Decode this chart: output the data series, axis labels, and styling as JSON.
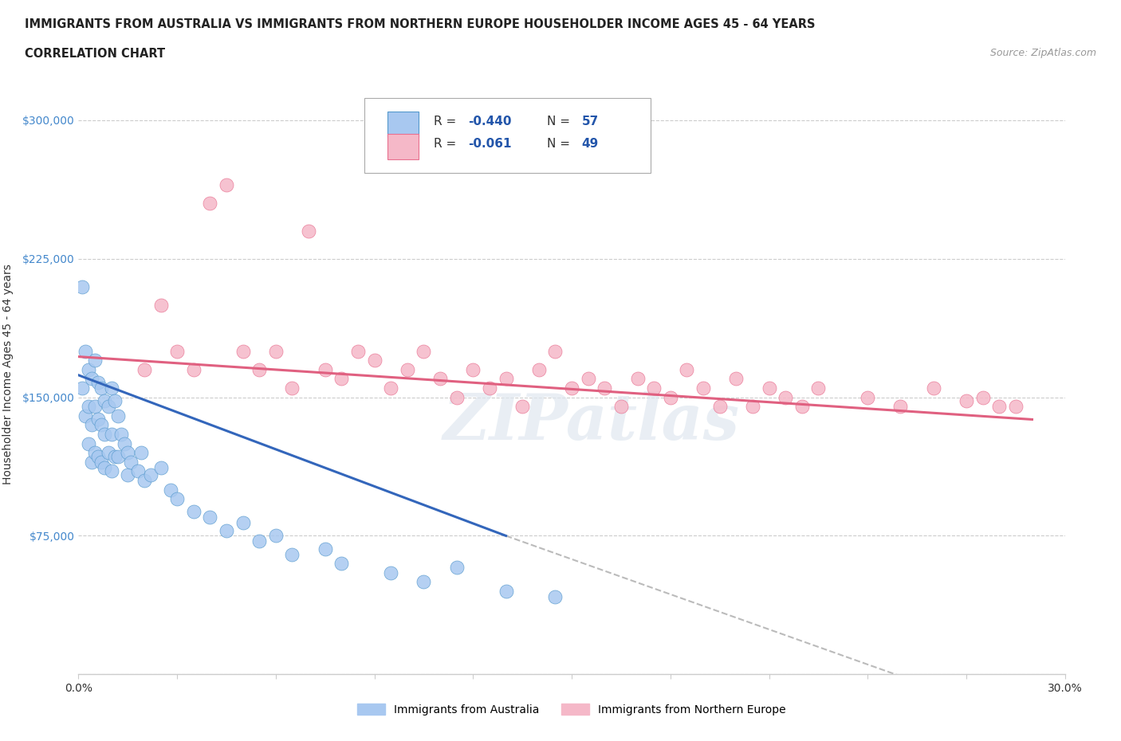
{
  "title_line1": "IMMIGRANTS FROM AUSTRALIA VS IMMIGRANTS FROM NORTHERN EUROPE HOUSEHOLDER INCOME AGES 45 - 64 YEARS",
  "title_line2": "CORRELATION CHART",
  "source_text": "Source: ZipAtlas.com",
  "ylabel": "Householder Income Ages 45 - 64 years",
  "xlim": [
    0.0,
    0.3
  ],
  "ylim": [
    0,
    325000
  ],
  "yticks": [
    0,
    75000,
    150000,
    225000,
    300000
  ],
  "yticklabels": [
    "",
    "$75,000",
    "$150,000",
    "$225,000",
    "$300,000"
  ],
  "grid_color": "#cccccc",
  "background_color": "#ffffff",
  "australia_color": "#a8c8f0",
  "northern_europe_color": "#f5b8c8",
  "australia_line_color": "#3366bb",
  "northern_europe_line_color": "#e06080",
  "dashed_line_color": "#bbbbbb",
  "australia_scatter_x": [
    0.001,
    0.001,
    0.002,
    0.002,
    0.003,
    0.003,
    0.003,
    0.004,
    0.004,
    0.004,
    0.005,
    0.005,
    0.005,
    0.006,
    0.006,
    0.006,
    0.007,
    0.007,
    0.007,
    0.008,
    0.008,
    0.008,
    0.009,
    0.009,
    0.01,
    0.01,
    0.01,
    0.011,
    0.011,
    0.012,
    0.012,
    0.013,
    0.014,
    0.015,
    0.015,
    0.016,
    0.018,
    0.019,
    0.02,
    0.022,
    0.025,
    0.028,
    0.03,
    0.035,
    0.04,
    0.045,
    0.05,
    0.055,
    0.06,
    0.065,
    0.075,
    0.08,
    0.095,
    0.105,
    0.115,
    0.13,
    0.145
  ],
  "australia_scatter_y": [
    210000,
    155000,
    175000,
    140000,
    165000,
    145000,
    125000,
    160000,
    135000,
    115000,
    170000,
    145000,
    120000,
    158000,
    138000,
    118000,
    155000,
    135000,
    115000,
    148000,
    130000,
    112000,
    145000,
    120000,
    155000,
    130000,
    110000,
    148000,
    118000,
    140000,
    118000,
    130000,
    125000,
    120000,
    108000,
    115000,
    110000,
    120000,
    105000,
    108000,
    112000,
    100000,
    95000,
    88000,
    85000,
    78000,
    82000,
    72000,
    75000,
    65000,
    68000,
    60000,
    55000,
    50000,
    58000,
    45000,
    42000
  ],
  "northern_europe_scatter_x": [
    0.02,
    0.025,
    0.03,
    0.035,
    0.04,
    0.045,
    0.05,
    0.055,
    0.06,
    0.065,
    0.07,
    0.075,
    0.08,
    0.085,
    0.09,
    0.095,
    0.1,
    0.105,
    0.11,
    0.115,
    0.12,
    0.125,
    0.13,
    0.135,
    0.14,
    0.145,
    0.15,
    0.155,
    0.16,
    0.165,
    0.17,
    0.175,
    0.18,
    0.185,
    0.19,
    0.195,
    0.2,
    0.205,
    0.21,
    0.215,
    0.22,
    0.225,
    0.24,
    0.25,
    0.26,
    0.27,
    0.275,
    0.28,
    0.285
  ],
  "northern_europe_scatter_y": [
    165000,
    200000,
    175000,
    165000,
    255000,
    265000,
    175000,
    165000,
    175000,
    155000,
    240000,
    165000,
    160000,
    175000,
    170000,
    155000,
    165000,
    175000,
    160000,
    150000,
    165000,
    155000,
    160000,
    145000,
    165000,
    175000,
    155000,
    160000,
    155000,
    145000,
    160000,
    155000,
    150000,
    165000,
    155000,
    145000,
    160000,
    145000,
    155000,
    150000,
    145000,
    155000,
    150000,
    145000,
    155000,
    148000,
    150000,
    145000,
    145000
  ],
  "legend_R_aus": "R = -0.440",
  "legend_N_aus": "N = 57",
  "legend_R_ne": "R =  -0.061",
  "legend_N_ne": "N = 49",
  "watermark_text": "ZIPatlas",
  "legend_bottom_aus": "Immigrants from Australia",
  "legend_bottom_ne": "Immigrants from Northern Europe"
}
